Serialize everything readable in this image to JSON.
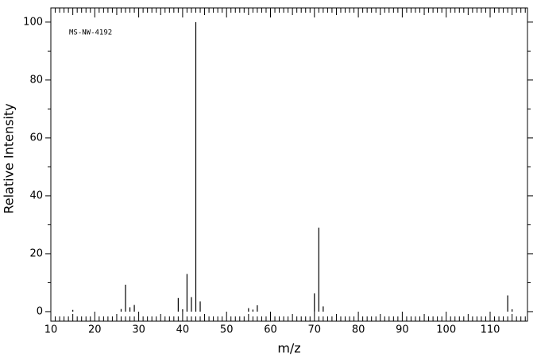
{
  "chart_data": {
    "type": "stem",
    "annotation": "MS-NW-4192",
    "xlabel": "m/z",
    "ylabel": "Relative Intensity",
    "x": [
      15,
      26,
      27,
      28,
      29,
      39,
      40,
      41,
      42,
      43,
      44,
      55,
      56,
      57,
      70,
      71,
      72,
      114,
      115
    ],
    "values": [
      0.6,
      0.9,
      9.3,
      1.5,
      2.3,
      4.7,
      0.8,
      13,
      5,
      100,
      3.5,
      1.2,
      0.7,
      2.2,
      6.3,
      29,
      1.8,
      5.6,
      0.8
    ],
    "color": "#000000",
    "xlim": [
      10,
      118.5
    ],
    "ylim": [
      -3.3,
      104.9
    ],
    "xticks": [
      10,
      20,
      30,
      40,
      50,
      60,
      70,
      80,
      90,
      100,
      110
    ],
    "xminorticks": [
      11,
      12,
      13,
      14,
      15,
      16,
      17,
      18,
      19,
      21,
      22,
      23,
      24,
      25,
      26,
      27,
      28,
      29,
      31,
      32,
      33,
      34,
      35,
      36,
      37,
      38,
      39,
      41,
      42,
      43,
      44,
      45,
      46,
      47,
      48,
      49,
      51,
      52,
      53,
      54,
      55,
      56,
      57,
      58,
      59,
      61,
      62,
      63,
      64,
      65,
      66,
      67,
      68,
      69,
      71,
      72,
      73,
      74,
      75,
      76,
      77,
      78,
      79,
      81,
      82,
      83,
      84,
      85,
      86,
      87,
      88,
      89,
      91,
      92,
      93,
      94,
      95,
      96,
      97,
      98,
      99,
      101,
      102,
      103,
      104,
      105,
      106,
      107,
      108,
      109,
      111,
      112,
      113,
      114,
      115,
      116,
      117,
      118
    ],
    "yticks": [
      0,
      20,
      40,
      60,
      80,
      100
    ],
    "yminorticks": [
      10,
      30,
      50,
      70,
      90
    ]
  }
}
